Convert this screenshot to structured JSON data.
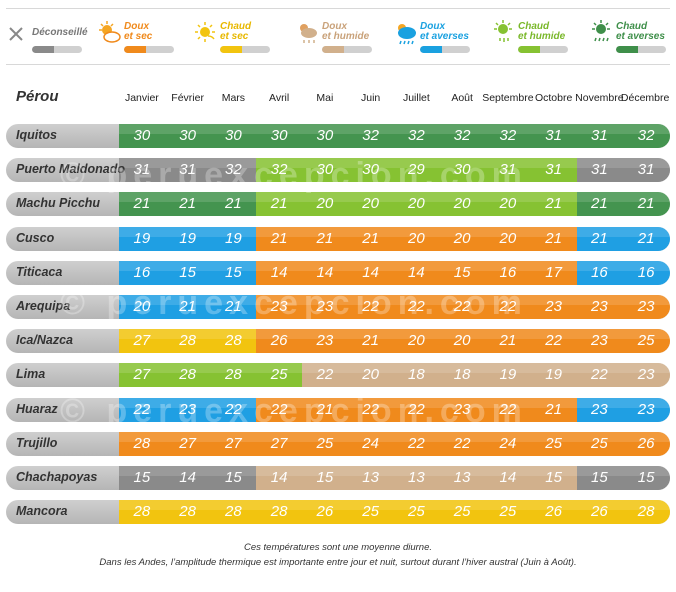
{
  "legend": [
    {
      "key": "deconseille",
      "line1": "Déconseillé",
      "line2": "",
      "color": "#8a8a8a",
      "text_color": "#777777",
      "icon": "cross-icon"
    },
    {
      "key": "doux_sec",
      "line1": "Doux",
      "line2": "et sec",
      "color": "#f08a1c",
      "text_color": "#f08a1c",
      "icon": "sun-cloud-icon"
    },
    {
      "key": "chaud_sec",
      "line1": "Chaud",
      "line2": "et sec",
      "color": "#f2c40f",
      "text_color": "#e8b800",
      "icon": "sun-icon"
    },
    {
      "key": "doux_humide",
      "line1": "Doux",
      "line2": "et humide",
      "color": "#d1b08c",
      "text_color": "#c9a27a",
      "icon": "cloud-rain-icon"
    },
    {
      "key": "doux_averses",
      "line1": "Doux",
      "line2": "et averses",
      "color": "#1aa1e0",
      "text_color": "#1aa1e0",
      "icon": "cloud-showers-icon"
    },
    {
      "key": "chaud_humide",
      "line1": "Chaud",
      "line2": "et humide",
      "color": "#86c232",
      "text_color": "#7ab82a",
      "icon": "sun-rain-icon"
    },
    {
      "key": "chaud_averses",
      "line1": "Chaud",
      "line2": "et averses",
      "color": "#3f8f4a",
      "text_color": "#3f8f4a",
      "icon": "sun-showers-icon"
    }
  ],
  "colors": {
    "G": "#44944f",
    "L": "#86c232",
    "X": "#8a8a8a",
    "B": "#1f9fe3",
    "O": "#f08a1c",
    "Y": "#f2c40f",
    "T": "#d1b08c"
  },
  "chart_data": {
    "type": "table",
    "title": "Pérou",
    "months": [
      "Janvier",
      "Février",
      "Mars",
      "Avril",
      "Mai",
      "Juin",
      "Juillet",
      "Août",
      "Septembre",
      "Octobre",
      "Novembre",
      "Décembre"
    ],
    "rows": [
      {
        "name": "Iquitos",
        "temps": [
          30,
          30,
          30,
          30,
          30,
          32,
          32,
          32,
          32,
          31,
          31,
          32
        ],
        "cats": "GGGGGGGGGGGG"
      },
      {
        "name": "Puerto Maldonado",
        "temps": [
          31,
          31,
          32,
          32,
          30,
          30,
          29,
          30,
          31,
          31,
          31,
          31
        ],
        "cats": "XXXLLLLLLLXX"
      },
      {
        "name": "Machu Picchu",
        "temps": [
          21,
          21,
          21,
          21,
          20,
          20,
          20,
          20,
          20,
          21,
          21,
          21
        ],
        "cats": "GGGLLLLLLLGG"
      },
      {
        "name": "Cusco",
        "temps": [
          19,
          19,
          19,
          21,
          21,
          21,
          20,
          20,
          20,
          21,
          21,
          21
        ],
        "cats": "BBBOOOOOOOBB"
      },
      {
        "name": "Titicaca",
        "temps": [
          16,
          15,
          15,
          14,
          14,
          14,
          14,
          15,
          16,
          17,
          16,
          16
        ],
        "cats": "BBBOOOOOOOBB"
      },
      {
        "name": "Arequipa",
        "temps": [
          20,
          21,
          21,
          23,
          23,
          22,
          22,
          22,
          22,
          23,
          23,
          23
        ],
        "cats": "BBBOOOOOOOOO"
      },
      {
        "name": "Ica/Nazca",
        "temps": [
          27,
          28,
          28,
          26,
          23,
          21,
          20,
          20,
          21,
          22,
          23,
          25
        ],
        "cats": "YYYOOOOOOOOO"
      },
      {
        "name": "Lima",
        "temps": [
          27,
          28,
          28,
          25,
          22,
          20,
          18,
          18,
          19,
          19,
          22,
          23
        ],
        "cats": "LLLLTTTTTTTT"
      },
      {
        "name": "Huaraz",
        "temps": [
          22,
          23,
          22,
          22,
          21,
          22,
          22,
          23,
          22,
          21,
          23,
          23
        ],
        "cats": "BBBOOOOOOOBB"
      },
      {
        "name": "Trujillo",
        "temps": [
          28,
          27,
          27,
          27,
          25,
          24,
          22,
          22,
          24,
          25,
          25,
          26
        ],
        "cats": "OOOOOOOOOOOO"
      },
      {
        "name": "Chachapoyas",
        "temps": [
          15,
          14,
          15,
          14,
          15,
          13,
          13,
          13,
          14,
          15,
          15,
          15
        ],
        "cats": "XXXTTTTTTTXX"
      },
      {
        "name": "Mancora",
        "temps": [
          28,
          28,
          28,
          28,
          26,
          25,
          25,
          25,
          25,
          26,
          26,
          28
        ],
        "cats": "YYYYYYYYYYYY"
      }
    ]
  },
  "watermark": "© peruexcepcion.com",
  "footnote": {
    "line1": "Ces températures sont une moyenne diurne.",
    "line2": "Dans les Andes, l’amplitude thermique est importante entre jour et nuit, surtout durant l’hiver austral (Juin à Août)."
  }
}
